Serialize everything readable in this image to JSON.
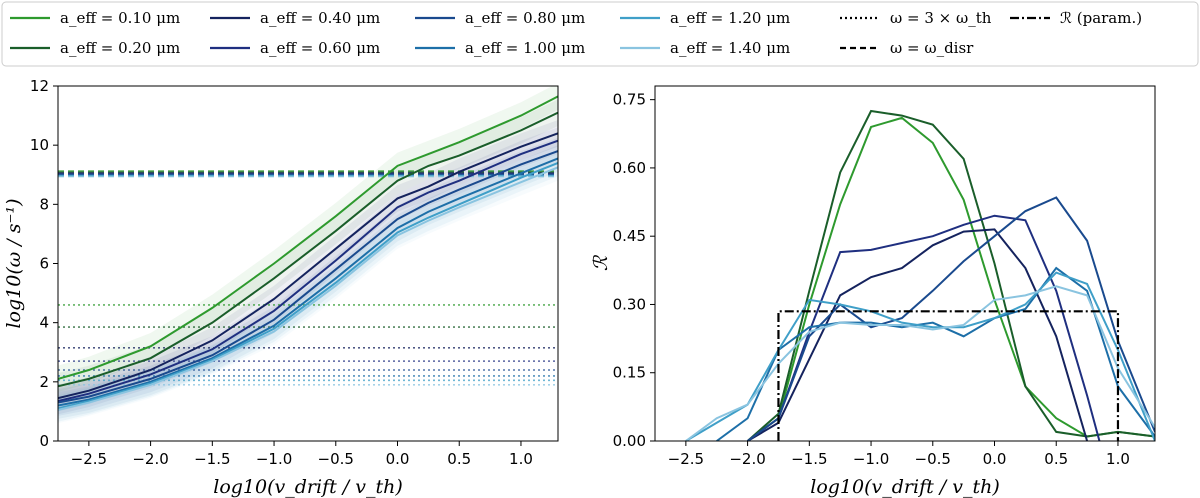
{
  "legend": {
    "items": [
      {
        "label": "a_eff = 0.10 μm",
        "color": "#2e9a2e",
        "style": "solid"
      },
      {
        "label": "a_eff = 0.20 μm",
        "color": "#1a5e2a",
        "style": "solid"
      },
      {
        "label": "a_eff = 0.40 μm",
        "color": "#15235e",
        "style": "solid"
      },
      {
        "label": "a_eff = 0.60 μm",
        "color": "#1f2f80",
        "style": "solid"
      },
      {
        "label": "a_eff = 0.80 μm",
        "color": "#1a4a8e",
        "style": "solid"
      },
      {
        "label": "a_eff = 1.00 μm",
        "color": "#1d6fa8",
        "style": "solid"
      },
      {
        "label": "a_eff = 1.20 μm",
        "color": "#3f9fc8",
        "style": "solid"
      },
      {
        "label": "a_eff = 1.40 μm",
        "color": "#8ac4e0",
        "style": "solid"
      },
      {
        "label": "ω = 3 × ω_th",
        "color": "#000000",
        "style": "dotted"
      },
      {
        "label": "ω = ω_disr",
        "color": "#000000",
        "style": "dashed"
      },
      {
        "label": "ℛ (param.)",
        "color": "#000000",
        "style": "dashdot"
      }
    ]
  },
  "chart_data": [
    {
      "type": "line",
      "xlabel": "log10(v_drift / v_th)",
      "ylabel": "log10(ω / s⁻¹)",
      "xlim": [
        -2.75,
        1.3
      ],
      "ylim": [
        0,
        12
      ],
      "xticks": [
        -2.5,
        -2.0,
        -1.5,
        -1.0,
        -0.5,
        0.0,
        0.5,
        1.0
      ],
      "xtick_labels": [
        "−2.5",
        "−2.0",
        "−1.5",
        "−1.0",
        "−0.5",
        "0.0",
        "0.5",
        "1.0"
      ],
      "yticks": [
        0,
        2,
        4,
        6,
        8,
        10,
        12
      ],
      "ytick_labels": [
        "0",
        "2",
        "4",
        "6",
        "8",
        "10",
        "12"
      ],
      "x": [
        -2.75,
        -2.5,
        -2.0,
        -1.5,
        -1.0,
        -0.5,
        0.0,
        0.25,
        0.5,
        1.0,
        1.3
      ],
      "series": [
        {
          "name": "a_eff = 0.10 μm",
          "color": "#2e9a2e",
          "values": [
            2.1,
            2.4,
            3.2,
            4.5,
            6.0,
            7.6,
            9.3,
            9.7,
            10.1,
            11.0,
            11.65
          ],
          "hband": 4.6,
          "dband": 9.12
        },
        {
          "name": "a_eff = 0.20 μm",
          "color": "#1a5e2a",
          "values": [
            1.85,
            2.1,
            2.8,
            4.0,
            5.5,
            7.1,
            8.8,
            9.3,
            9.65,
            10.5,
            11.1
          ],
          "hband": 3.85,
          "dband": 9.08
        },
        {
          "name": "a_eff = 0.40 μm",
          "color": "#15235e",
          "values": [
            1.45,
            1.7,
            2.4,
            3.4,
            4.8,
            6.5,
            8.2,
            8.6,
            9.1,
            9.95,
            10.4
          ],
          "hband": 3.15,
          "dband": 9.05
        },
        {
          "name": "a_eff = 0.60 μm",
          "color": "#1f2f80",
          "values": [
            1.35,
            1.6,
            2.25,
            3.1,
            4.4,
            6.1,
            7.9,
            8.4,
            8.8,
            9.7,
            10.15
          ],
          "hband": 2.7,
          "dband": 9.02
        },
        {
          "name": "a_eff = 0.80 μm",
          "color": "#1a4a8e",
          "values": [
            1.3,
            1.5,
            2.1,
            2.9,
            4.1,
            5.8,
            7.5,
            8.05,
            8.5,
            9.35,
            9.8
          ],
          "hband": 2.4,
          "dband": 9.0
        },
        {
          "name": "a_eff = 1.00 μm",
          "color": "#1d6fa8",
          "values": [
            1.2,
            1.4,
            2.0,
            2.8,
            3.9,
            5.5,
            7.2,
            7.75,
            8.2,
            9.05,
            9.55
          ],
          "hband": 2.2,
          "dband": 8.98
        },
        {
          "name": "a_eff = 1.20 μm",
          "color": "#3f9fc8",
          "values": [
            1.1,
            1.35,
            1.95,
            2.75,
            3.8,
            5.35,
            7.05,
            7.55,
            8.0,
            8.9,
            9.4
          ],
          "hband": 2.05,
          "dband": 8.96
        },
        {
          "name": "a_eff = 1.40 μm",
          "color": "#8ac4e0",
          "values": [
            1.05,
            1.3,
            1.9,
            2.7,
            3.7,
            5.25,
            6.95,
            7.45,
            7.9,
            8.75,
            9.25
          ],
          "hband": 1.9,
          "dband": 8.94
        }
      ]
    },
    {
      "type": "line",
      "xlabel": "log10(v_drift / v_th)",
      "ylabel": "ℛ",
      "xlim": [
        -2.75,
        1.3
      ],
      "ylim": [
        0,
        0.78
      ],
      "xticks": [
        -2.5,
        -2.0,
        -1.5,
        -1.0,
        -0.5,
        0.0,
        0.5,
        1.0
      ],
      "xtick_labels": [
        "−2.5",
        "−2.0",
        "−1.5",
        "−1.0",
        "−0.5",
        "0.0",
        "0.5",
        "1.0"
      ],
      "yticks": [
        0.0,
        0.15,
        0.3,
        0.45,
        0.6,
        0.75
      ],
      "ytick_labels": [
        "0.00",
        "0.15",
        "0.30",
        "0.45",
        "0.60",
        "0.75"
      ],
      "param": {
        "x": [
          -1.75,
          -1.75,
          1.0,
          1.0
        ],
        "y": [
          0.0,
          0.285,
          0.285,
          0.0
        ],
        "color": "#000000"
      },
      "series": [
        {
          "name": "a_eff = 0.10 μm",
          "color": "#2e9a2e",
          "x": [
            -2.0,
            -1.75,
            -1.5,
            -1.25,
            -1.0,
            -0.75,
            -0.5,
            -0.25,
            0.0,
            0.25,
            0.5,
            0.75,
            1.0,
            1.3
          ],
          "y": [
            0.0,
            0.05,
            0.3,
            0.52,
            0.69,
            0.71,
            0.655,
            0.53,
            0.31,
            0.12,
            0.05,
            0.01,
            0.02,
            0.01
          ]
        },
        {
          "name": "a_eff = 0.20 μm",
          "color": "#1a5e2a",
          "x": [
            -2.0,
            -1.75,
            -1.5,
            -1.25,
            -1.0,
            -0.75,
            -0.5,
            -0.25,
            0.0,
            0.25,
            0.5,
            0.75,
            1.0,
            1.3
          ],
          "y": [
            0.0,
            0.06,
            0.33,
            0.59,
            0.725,
            0.715,
            0.695,
            0.62,
            0.39,
            0.12,
            0.02,
            0.01,
            0.02,
            0.01
          ]
        },
        {
          "name": "a_eff = 0.40 μm",
          "color": "#15235e",
          "x": [
            -2.0,
            -1.75,
            -1.5,
            -1.25,
            -1.0,
            -0.75,
            -0.5,
            -0.25,
            0.0,
            0.25,
            0.5,
            0.75
          ],
          "y": [
            0.0,
            0.04,
            0.18,
            0.32,
            0.36,
            0.38,
            0.43,
            0.46,
            0.465,
            0.38,
            0.23,
            0.0
          ]
        },
        {
          "name": "a_eff = 0.60 μm",
          "color": "#1f2f80",
          "x": [
            -2.0,
            -1.75,
            -1.5,
            -1.25,
            -1.0,
            -0.75,
            -0.5,
            -0.25,
            0.0,
            0.25,
            0.5,
            0.75,
            0.85
          ],
          "y": [
            0.0,
            0.05,
            0.24,
            0.415,
            0.42,
            0.435,
            0.45,
            0.475,
            0.495,
            0.485,
            0.33,
            0.1,
            0.0
          ]
        },
        {
          "name": "a_eff = 0.80 μm",
          "color": "#1a4a8e",
          "x": [
            -2.0,
            -1.75,
            -1.5,
            -1.25,
            -1.0,
            -0.75,
            -0.5,
            -0.25,
            0.0,
            0.25,
            0.5,
            0.75,
            1.0,
            1.3
          ],
          "y": [
            0.0,
            0.05,
            0.23,
            0.3,
            0.25,
            0.27,
            0.33,
            0.395,
            0.45,
            0.505,
            0.535,
            0.44,
            0.22,
            0.02
          ]
        },
        {
          "name": "a_eff = 1.00 μm",
          "color": "#1d6fa8",
          "x": [
            -2.25,
            -2.0,
            -1.75,
            -1.5,
            -1.25,
            -1.0,
            -0.75,
            -0.5,
            -0.25,
            0.0,
            0.25,
            0.5,
            0.75,
            1.0,
            1.3
          ],
          "y": [
            0.0,
            0.05,
            0.2,
            0.25,
            0.26,
            0.26,
            0.25,
            0.26,
            0.23,
            0.27,
            0.29,
            0.38,
            0.33,
            0.12,
            0.01
          ]
        },
        {
          "name": "a_eff = 1.20 μm",
          "color": "#3f9fc8",
          "x": [
            -2.5,
            -2.25,
            -2.0,
            -1.75,
            -1.5,
            -1.25,
            -1.0,
            -0.75,
            -0.5,
            -0.25,
            0.0,
            0.25,
            0.5,
            0.75,
            1.0,
            1.3
          ],
          "y": [
            0.0,
            0.04,
            0.08,
            0.2,
            0.31,
            0.3,
            0.285,
            0.26,
            0.25,
            0.25,
            0.27,
            0.3,
            0.37,
            0.345,
            0.2,
            0.0
          ]
        },
        {
          "name": "a_eff = 1.40 μm",
          "color": "#8ac4e0",
          "x": [
            -2.5,
            -2.25,
            -2.0,
            -1.75,
            -1.5,
            -1.25,
            -1.0,
            -0.75,
            -0.5,
            -0.25,
            0.0,
            0.25,
            0.5,
            0.75,
            1.0,
            1.3
          ],
          "y": [
            0.0,
            0.05,
            0.08,
            0.17,
            0.24,
            0.26,
            0.255,
            0.255,
            0.245,
            0.255,
            0.31,
            0.32,
            0.34,
            0.32,
            0.16,
            0.03
          ]
        }
      ]
    }
  ]
}
